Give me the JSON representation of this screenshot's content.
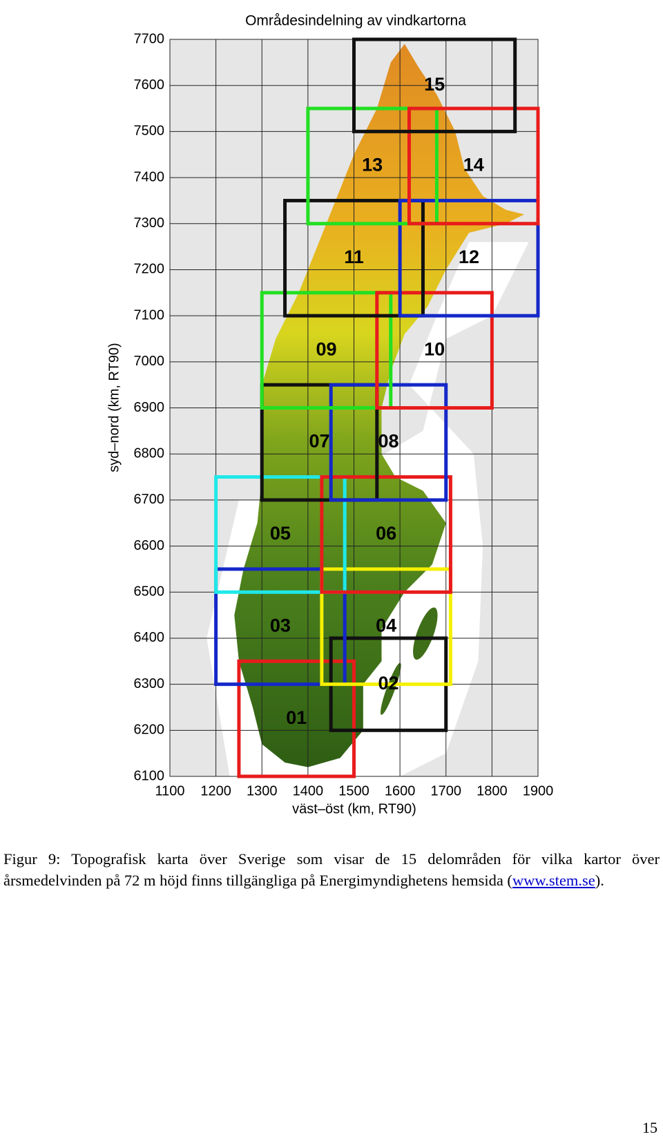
{
  "chart_data": {
    "type": "region-map",
    "title": "Områdesindelning av vindkartorna",
    "xlabel": "väst–öst (km, RT90)",
    "ylabel": "syd–nord (km, RT90)",
    "xlim": [
      1100,
      1900
    ],
    "ylim": [
      6100,
      7700
    ],
    "xticks": [
      1100,
      1200,
      1300,
      1400,
      1500,
      1600,
      1700,
      1800,
      1900
    ],
    "yticks": [
      6100,
      6200,
      6300,
      6400,
      6500,
      6600,
      6700,
      6800,
      6900,
      7000,
      7100,
      7200,
      7300,
      7400,
      7500,
      7600,
      7700
    ],
    "grid": true,
    "regions": [
      {
        "label": "01",
        "color": "#e81c1c",
        "x": [
          1250,
          1500
        ],
        "y": [
          6100,
          6350
        ]
      },
      {
        "label": "02",
        "color": "#111111",
        "x": [
          1450,
          1700
        ],
        "y": [
          6200,
          6400
        ]
      },
      {
        "label": "03",
        "color": "#1428c8",
        "x": [
          1200,
          1480
        ],
        "y": [
          6300,
          6550
        ]
      },
      {
        "label": "04",
        "color": "#f5f000",
        "x": [
          1430,
          1710
        ],
        "y": [
          6300,
          6550
        ]
      },
      {
        "label": "05",
        "color": "#20e8e8",
        "x": [
          1200,
          1480
        ],
        "y": [
          6500,
          6750
        ]
      },
      {
        "label": "06",
        "color": "#e81c1c",
        "x": [
          1430,
          1710
        ],
        "y": [
          6500,
          6750
        ]
      },
      {
        "label": "07",
        "color": "#111111",
        "x": [
          1300,
          1550
        ],
        "y": [
          6700,
          6950
        ]
      },
      {
        "label": "08",
        "color": "#1428c8",
        "x": [
          1450,
          1700
        ],
        "y": [
          6700,
          6950
        ]
      },
      {
        "label": "09",
        "color": "#22e022",
        "x": [
          1300,
          1580
        ],
        "y": [
          6900,
          7150
        ]
      },
      {
        "label": "10",
        "color": "#e81c1c",
        "x": [
          1550,
          1800
        ],
        "y": [
          6900,
          7150
        ]
      },
      {
        "label": "11",
        "color": "#111111",
        "x": [
          1350,
          1650
        ],
        "y": [
          7100,
          7350
        ]
      },
      {
        "label": "12",
        "color": "#1428c8",
        "x": [
          1600,
          1900
        ],
        "y": [
          7100,
          7350
        ]
      },
      {
        "label": "13",
        "color": "#22e022",
        "x": [
          1400,
          1680
        ],
        "y": [
          7300,
          7550
        ]
      },
      {
        "label": "14",
        "color": "#e81c1c",
        "x": [
          1620,
          1900
        ],
        "y": [
          7300,
          7550
        ]
      },
      {
        "label": "15",
        "color": "#111111",
        "x": [
          1500,
          1850
        ],
        "y": [
          7500,
          7700
        ]
      }
    ]
  },
  "caption": {
    "text_before": "Figur 9: Topografisk karta över Sverige som visar de 15 delområden för vilka kartor över årsmedelvinden på 72 m höjd finns tillgängliga på Energimyndighetens hemsida (",
    "link": "www.stem.se",
    "text_after": ")."
  },
  "page_number": "15"
}
